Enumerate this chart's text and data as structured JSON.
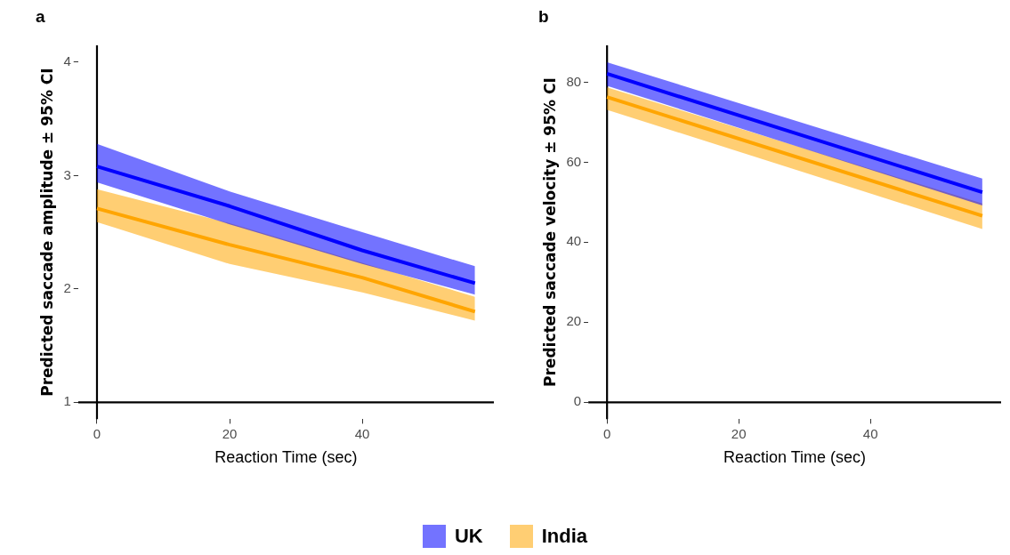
{
  "chart_data": [
    {
      "type": "line",
      "title": "a",
      "xlabel": "Reaction Time (sec)",
      "ylabel": "Predicted saccade amplitude ± 95% CI",
      "xlim": [
        -2.85,
        59.85
      ],
      "xticks": [
        0,
        20,
        40
      ],
      "ylim": [
        0.85,
        4.15
      ],
      "yticks": [
        1,
        2,
        3,
        4
      ],
      "grid": false,
      "legend": "bottom",
      "series": [
        {
          "name": "UK",
          "color": "#0000ff",
          "x": [
            0,
            20,
            40,
            57
          ],
          "values": [
            3.08,
            2.73,
            2.34,
            2.05
          ],
          "lower": [
            2.94,
            2.57,
            2.22,
            1.95
          ],
          "upper": [
            3.28,
            2.86,
            2.5,
            2.2
          ]
        },
        {
          "name": "India",
          "color": "#ffa500",
          "x": [
            0,
            20,
            40,
            57
          ],
          "values": [
            2.71,
            2.39,
            2.1,
            1.8
          ],
          "lower": [
            2.59,
            2.22,
            1.97,
            1.72
          ],
          "upper": [
            2.88,
            2.58,
            2.23,
            1.93
          ]
        },
        {
          "type": "line",
          "color": "#000000",
          "x": [
            0,
            0
          ],
          "values": [
            0.85,
            4.15
          ]
        },
        {
          "type": "line",
          "color": "#000000",
          "x": [
            -2.85,
            59.85
          ],
          "values": [
            1,
            1
          ]
        }
      ]
    },
    {
      "type": "line",
      "title": "b",
      "xlabel": "Reaction Time (sec)",
      "ylabel": "Predicted saccade velocity ± 95% CI",
      "xlim": [
        -2.85,
        59.85
      ],
      "xticks": [
        0,
        20,
        40
      ],
      "ylim": [
        -4.25,
        89.25
      ],
      "yticks": [
        0,
        20,
        40,
        60,
        80
      ],
      "grid": false,
      "legend": "bottom",
      "series": [
        {
          "name": "UK",
          "color": "#0000ff",
          "x": [
            0,
            57
          ],
          "values": [
            82.1,
            52.5
          ],
          "lower": [
            79.1,
            49.2
          ],
          "upper": [
            85.0,
            55.9
          ]
        },
        {
          "name": "India",
          "color": "#ffa500",
          "x": [
            0,
            57
          ],
          "values": [
            76.3,
            46.6
          ],
          "lower": [
            73.1,
            43.3
          ],
          "upper": [
            78.7,
            49.7
          ]
        },
        {
          "type": "line",
          "color": "#000000",
          "x": [
            0,
            0
          ],
          "values": [
            -4.25,
            89.25
          ]
        },
        {
          "type": "line",
          "color": "#000000",
          "x": [
            -2.85,
            59.85
          ],
          "values": [
            0,
            0
          ]
        }
      ]
    }
  ]
}
